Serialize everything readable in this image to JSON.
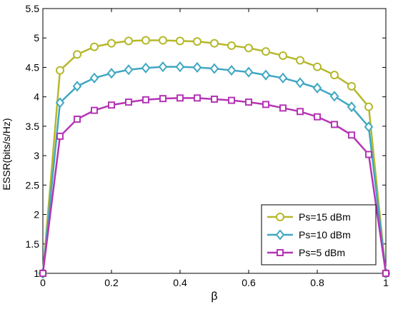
{
  "chart_data": {
    "type": "line",
    "xlabel": "β",
    "ylabel": "ESSR(bits/s/Hz)",
    "xlim": [
      0,
      1
    ],
    "ylim": [
      1,
      5.5
    ],
    "xticks": [
      0,
      0.2,
      0.4,
      0.6,
      0.8,
      1
    ],
    "xtick_labels": [
      "0",
      "0.2",
      "0.4",
      "0.6",
      "0.8",
      "1"
    ],
    "yticks": [
      1,
      1.5,
      2,
      2.5,
      3,
      3.5,
      4,
      4.5,
      5,
      5.5
    ],
    "ytick_labels": [
      "1",
      "1.5",
      "2",
      "2.5",
      "3",
      "3.5",
      "4",
      "4.5",
      "5",
      "5.5"
    ],
    "grid": false,
    "legend_position": "bottom-right",
    "x": [
      0,
      0.05,
      0.1,
      0.15,
      0.2,
      0.25,
      0.3,
      0.35,
      0.4,
      0.45,
      0.5,
      0.55,
      0.6,
      0.65,
      0.7,
      0.75,
      0.8,
      0.85,
      0.9,
      0.95,
      1
    ],
    "series": [
      {
        "name": "Ps=15 dBm",
        "color": "#b5b82a",
        "marker": "circle",
        "values": [
          1.0,
          4.45,
          4.72,
          4.85,
          4.91,
          4.95,
          4.96,
          4.96,
          4.95,
          4.94,
          4.91,
          4.87,
          4.83,
          4.77,
          4.7,
          4.62,
          4.51,
          4.37,
          4.18,
          3.83,
          1.0
        ]
      },
      {
        "name": "Ps=10 dBm",
        "color": "#3fa7c2",
        "marker": "diamond",
        "values": [
          1.0,
          3.9,
          4.18,
          4.32,
          4.4,
          4.46,
          4.49,
          4.51,
          4.51,
          4.5,
          4.48,
          4.45,
          4.42,
          4.37,
          4.32,
          4.24,
          4.15,
          4.01,
          3.83,
          3.49,
          1.0
        ]
      },
      {
        "name": "Ps=5 dBm",
        "color": "#b535b5",
        "marker": "square",
        "values": [
          1.0,
          3.33,
          3.62,
          3.77,
          3.86,
          3.91,
          3.95,
          3.97,
          3.98,
          3.98,
          3.96,
          3.94,
          3.91,
          3.87,
          3.81,
          3.75,
          3.66,
          3.53,
          3.35,
          3.02,
          1.0
        ]
      }
    ]
  }
}
